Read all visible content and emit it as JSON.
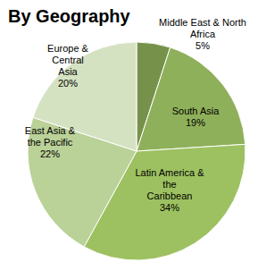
{
  "chart_data": {
    "type": "pie",
    "title": "By Geography",
    "categories": [
      "Middle East & North Africa",
      "South Asia",
      "Latin America & the Caribbean",
      "East Asia & the Pacific",
      "Europe & Central Asia"
    ],
    "values": [
      5,
      19,
      34,
      22,
      20
    ],
    "value_labels": [
      "5%",
      "19%",
      "34%",
      "22%",
      "20%"
    ],
    "colors": [
      "#76924a",
      "#8fb05a",
      "#9dc160",
      "#bad198",
      "#d5e2c2"
    ],
    "data_labels": true
  }
}
